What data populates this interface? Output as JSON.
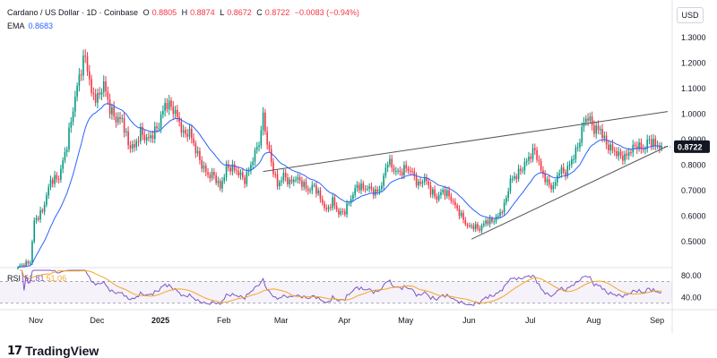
{
  "header": {
    "symbol": "Cardano / US Dollar · 1D · Coinbase",
    "open_label": "O",
    "open_value": "0.8805",
    "high_label": "H",
    "high_value": "0.8874",
    "low_label": "L",
    "low_value": "0.8672",
    "close_label": "C",
    "close_value": "0.8722",
    "change": "−0.0083 (−0.94%)"
  },
  "ema": {
    "label": "EMA",
    "value": "0.8683"
  },
  "rsi": {
    "label": "RSI",
    "value": "51.81",
    "ma_value": "51.06"
  },
  "currency_button": "USD",
  "brand": {
    "name": "TradingView",
    "mark": "17"
  },
  "colors": {
    "up": "#089981",
    "down": "#f23645",
    "ema": "#2962ff",
    "rsi": "#7e57c2",
    "rsi_ma": "#f5a623",
    "trendline": "#555555"
  },
  "chart_data": {
    "type": "candlestick",
    "price_axis": {
      "ylim": [
        0.45,
        1.35
      ],
      "ticks": [
        "1.3000",
        "1.2000",
        "1.1000",
        "1.0000",
        "0.9000",
        "0.8000",
        "0.7000",
        "0.6000",
        "0.5000"
      ],
      "last_price_tag": "0.8722"
    },
    "rsi_axis": {
      "ylim": [
        20,
        90
      ],
      "ticks": [
        "80.00",
        "40.00"
      ],
      "band": [
        30,
        70
      ]
    },
    "time_axis": {
      "labels": [
        "Nov",
        "Dec",
        "2025",
        "Feb",
        "Mar",
        "Apr",
        "May",
        "Jun",
        "Jul",
        "Aug",
        "Sep"
      ],
      "label_positions_day": [
        0,
        30,
        61,
        92,
        120,
        151,
        181,
        212,
        242,
        273,
        304
      ],
      "bold": [
        "2025"
      ],
      "total_days": 318
    },
    "close_series_keypoints": [
      [
        0,
        0.4
      ],
      [
        6,
        0.42
      ],
      [
        8,
        0.58
      ],
      [
        12,
        0.62
      ],
      [
        16,
        0.74
      ],
      [
        20,
        0.75
      ],
      [
        24,
        0.88
      ],
      [
        27,
        1.02
      ],
      [
        30,
        1.15
      ],
      [
        33,
        1.23
      ],
      [
        36,
        1.08
      ],
      [
        39,
        1.06
      ],
      [
        42,
        1.12
      ],
      [
        45,
        1.02
      ],
      [
        48,
        0.98
      ],
      [
        51,
        0.98
      ],
      [
        54,
        0.88
      ],
      [
        57,
        0.87
      ],
      [
        60,
        0.93
      ],
      [
        63,
        0.9
      ],
      [
        66,
        0.92
      ],
      [
        69,
        0.96
      ],
      [
        72,
        1.04
      ],
      [
        75,
        1.03
      ],
      [
        78,
        0.99
      ],
      [
        81,
        0.92
      ],
      [
        84,
        0.93
      ],
      [
        87,
        0.86
      ],
      [
        90,
        0.8
      ],
      [
        93,
        0.76
      ],
      [
        96,
        0.76
      ],
      [
        99,
        0.71
      ],
      [
        102,
        0.79
      ],
      [
        105,
        0.79
      ],
      [
        108,
        0.77
      ],
      [
        111,
        0.74
      ],
      [
        114,
        0.8
      ],
      [
        117,
        0.87
      ],
      [
        119,
        0.92
      ],
      [
        120,
        1.01
      ],
      [
        121,
        0.93
      ],
      [
        124,
        0.81
      ],
      [
        127,
        0.72
      ],
      [
        130,
        0.76
      ],
      [
        133,
        0.73
      ],
      [
        136,
        0.75
      ],
      [
        139,
        0.73
      ],
      [
        142,
        0.7
      ],
      [
        145,
        0.72
      ],
      [
        148,
        0.67
      ],
      [
        151,
        0.62
      ],
      [
        154,
        0.66
      ],
      [
        157,
        0.61
      ],
      [
        160,
        0.62
      ],
      [
        163,
        0.67
      ],
      [
        166,
        0.72
      ],
      [
        169,
        0.71
      ],
      [
        172,
        0.71
      ],
      [
        175,
        0.69
      ],
      [
        178,
        0.72
      ],
      [
        181,
        0.82
      ],
      [
        184,
        0.78
      ],
      [
        187,
        0.77
      ],
      [
        190,
        0.79
      ],
      [
        193,
        0.77
      ],
      [
        196,
        0.72
      ],
      [
        199,
        0.75
      ],
      [
        202,
        0.7
      ],
      [
        205,
        0.67
      ],
      [
        208,
        0.7
      ],
      [
        211,
        0.68
      ],
      [
        214,
        0.64
      ],
      [
        217,
        0.6
      ],
      [
        220,
        0.56
      ],
      [
        223,
        0.56
      ],
      [
        226,
        0.55
      ],
      [
        229,
        0.58
      ],
      [
        232,
        0.58
      ],
      [
        235,
        0.6
      ],
      [
        238,
        0.64
      ],
      [
        241,
        0.74
      ],
      [
        244,
        0.76
      ],
      [
        247,
        0.79
      ],
      [
        250,
        0.83
      ],
      [
        253,
        0.86
      ],
      [
        256,
        0.78
      ],
      [
        259,
        0.73
      ],
      [
        262,
        0.71
      ],
      [
        265,
        0.78
      ],
      [
        268,
        0.77
      ],
      [
        271,
        0.82
      ],
      [
        274,
        0.87
      ],
      [
        277,
        0.97
      ],
      [
        279,
        0.99
      ],
      [
        282,
        0.94
      ],
      [
        285,
        0.94
      ],
      [
        288,
        0.88
      ],
      [
        291,
        0.86
      ],
      [
        294,
        0.84
      ],
      [
        297,
        0.83
      ],
      [
        300,
        0.86
      ],
      [
        303,
        0.88
      ],
      [
        306,
        0.86
      ],
      [
        309,
        0.9
      ],
      [
        312,
        0.88
      ],
      [
        315,
        0.8722
      ]
    ],
    "trendlines": [
      {
        "name": "resistance",
        "from": [
          120,
          0.775
        ],
        "to": [
          318,
          1.01
        ]
      },
      {
        "name": "support",
        "from": [
          222,
          0.51
        ],
        "to": [
          318,
          0.875
        ]
      }
    ]
  }
}
